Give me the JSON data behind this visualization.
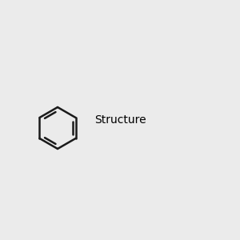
{
  "background_color": "#ebebeb",
  "bond_color": "#1a1a1a",
  "nitrogen_color": "#2020ff",
  "oxygen_color": "#ff2020",
  "fluorine_color": "#cc00cc",
  "hydrogen_color": "#2020ff",
  "h_nitrogen_color": "#3a9090",
  "line_width": 1.8,
  "fig_size": [
    3.0,
    3.0
  ],
  "dpi": 100
}
